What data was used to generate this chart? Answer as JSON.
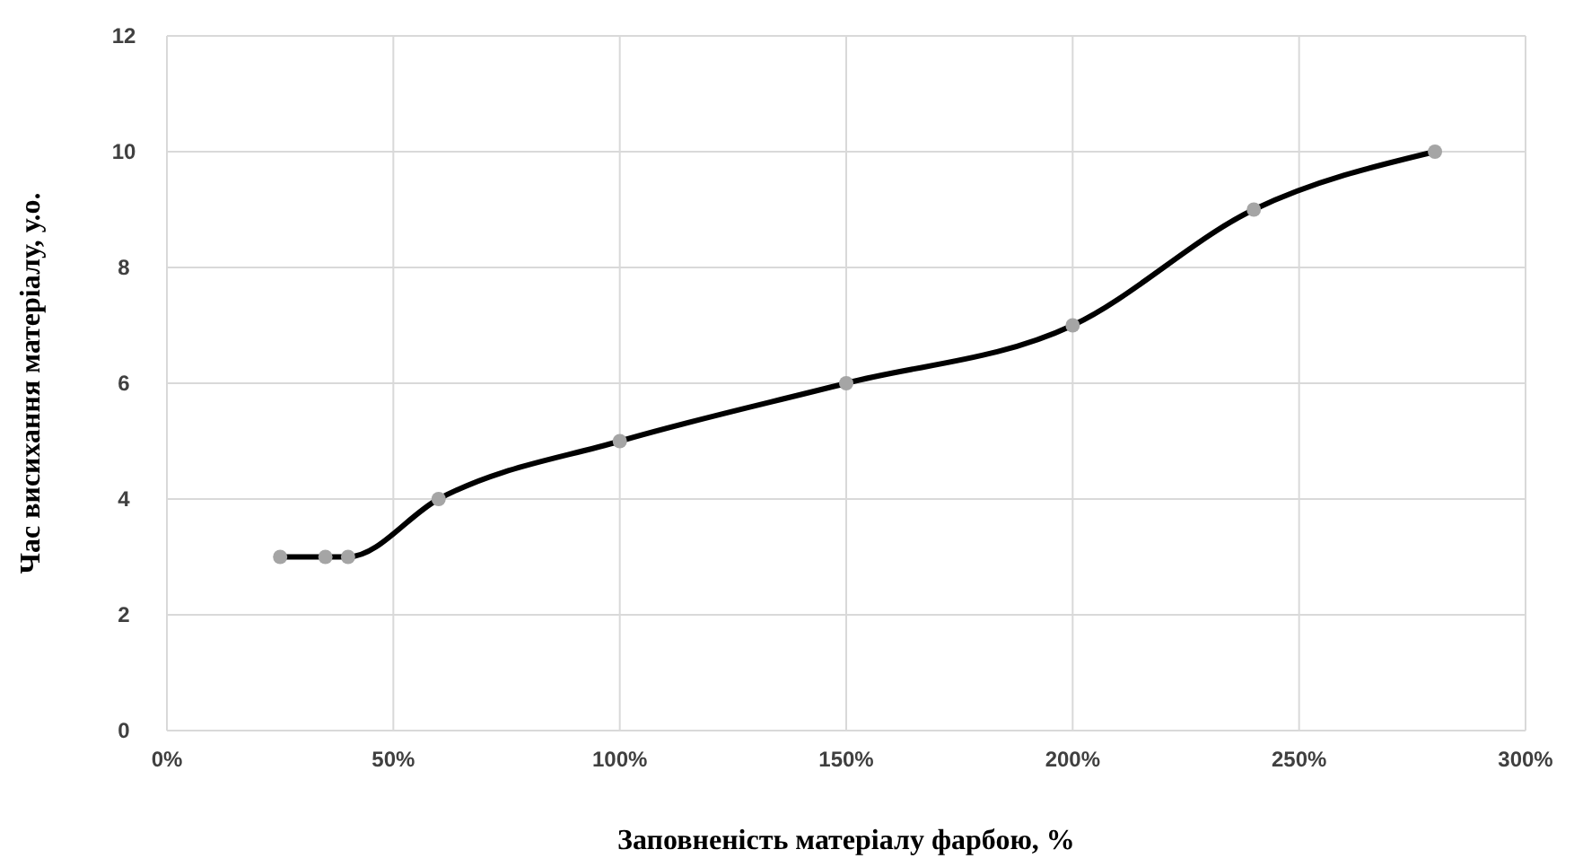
{
  "chart_data": {
    "type": "line",
    "xlabel": "Заповненість матеріалу фарбою, %",
    "ylabel": "Час висихання матеріалу, у.о.",
    "x": [
      25,
      35,
      40,
      60,
      100,
      150,
      200,
      240,
      280
    ],
    "series": [
      {
        "color": "#000000",
        "marker": "none",
        "values": [
          3,
          3,
          3,
          4,
          5,
          6,
          7,
          9,
          10
        ]
      },
      {
        "type": "scatter",
        "color": "#a5a5a5",
        "marker": "circle",
        "values": [
          3,
          3,
          3,
          4,
          5,
          6,
          7,
          9,
          10
        ]
      }
    ],
    "xlim": [
      0,
      300
    ],
    "xticks": [
      {
        "value": 0,
        "label": "0%"
      },
      {
        "value": 50,
        "label": "50%"
      },
      {
        "value": 100,
        "label": "100%"
      },
      {
        "value": 150,
        "label": "150%"
      },
      {
        "value": 200,
        "label": "200%"
      },
      {
        "value": 250,
        "label": "250%"
      },
      {
        "value": 300,
        "label": "300%"
      }
    ],
    "ylim": [
      0,
      12
    ],
    "yticks": [
      0,
      2,
      4,
      6,
      8,
      10,
      12
    ],
    "grid": true
  }
}
